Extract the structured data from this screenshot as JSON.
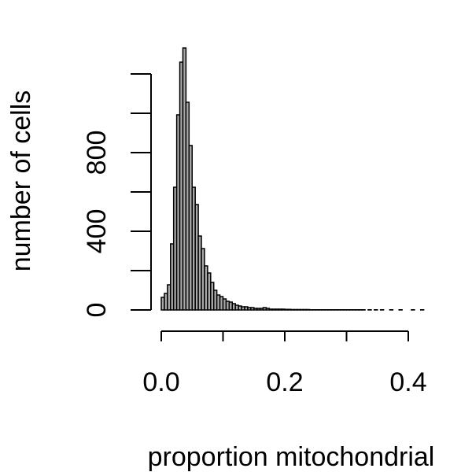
{
  "chart_data": {
    "type": "bar",
    "title": "",
    "xlabel": "proportion mitochondrial",
    "ylabel": "number of cells",
    "bin_width": 0.005,
    "bin_start": 0.0,
    "values": [
      64,
      84,
      128,
      336,
      624,
      992,
      1260,
      1332,
      1056,
      836,
      624,
      536,
      376,
      312,
      224,
      188,
      140,
      100,
      76,
      68,
      56,
      44,
      40,
      32,
      24,
      20,
      16,
      16,
      12,
      12,
      8,
      8,
      8,
      12,
      8,
      4,
      4,
      4,
      4,
      4,
      3,
      3,
      2,
      2,
      2,
      2,
      2,
      2,
      1,
      1,
      1,
      1,
      1,
      1,
      1,
      1,
      1,
      1,
      1,
      1,
      1,
      1,
      1,
      1,
      1,
      1,
      0,
      1,
      0,
      1,
      0,
      1,
      0,
      0,
      1,
      0,
      0,
      1,
      0,
      0,
      0,
      1,
      0,
      0,
      1
    ],
    "xlim": [
      0,
      0.4
    ],
    "ylim": [
      0,
      1200
    ],
    "xticks": [
      0.0,
      0.1,
      0.2,
      0.3,
      0.4
    ],
    "xtick_labels": [
      "0.0",
      "",
      "0.2",
      "",
      "0.4"
    ],
    "yticks": [
      0,
      200,
      400,
      600,
      800,
      1000,
      1200
    ],
    "ytick_labels": [
      "0",
      "",
      "400",
      "",
      "800",
      "",
      ""
    ],
    "bar_fill": "#a9a9a9",
    "bar_stroke": "#000000",
    "grid": false
  }
}
